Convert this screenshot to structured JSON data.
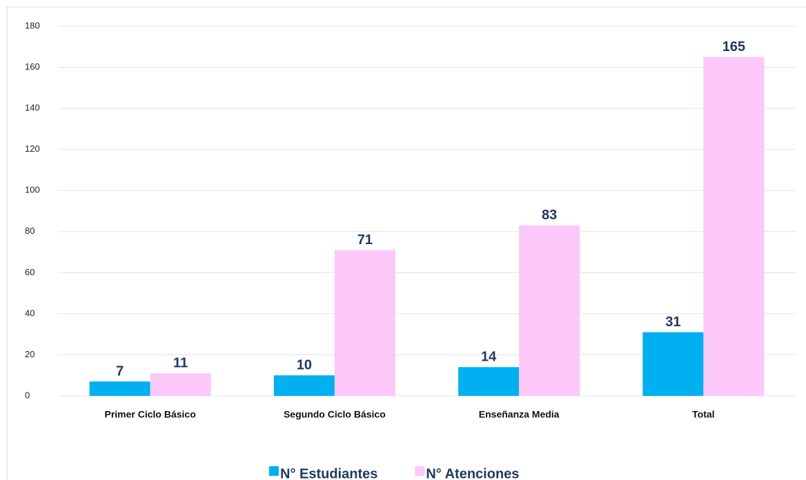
{
  "chart_data": {
    "type": "bar",
    "categories": [
      "Primer Ciclo Básico",
      "Segundo Ciclo Básico",
      "Enseñanza Media",
      "Total"
    ],
    "series": [
      {
        "name": "N° Estudiantes",
        "color": "#00b0f0",
        "values": [
          7,
          10,
          14,
          31
        ]
      },
      {
        "name": "N° Atenciones",
        "color": "#fcc8fa",
        "values": [
          11,
          71,
          83,
          165
        ]
      }
    ],
    "ylim": [
      0,
      180
    ],
    "yticks": [
      0,
      20,
      40,
      60,
      80,
      100,
      120,
      140,
      160,
      180
    ],
    "grid": true,
    "legend": "bottom"
  }
}
